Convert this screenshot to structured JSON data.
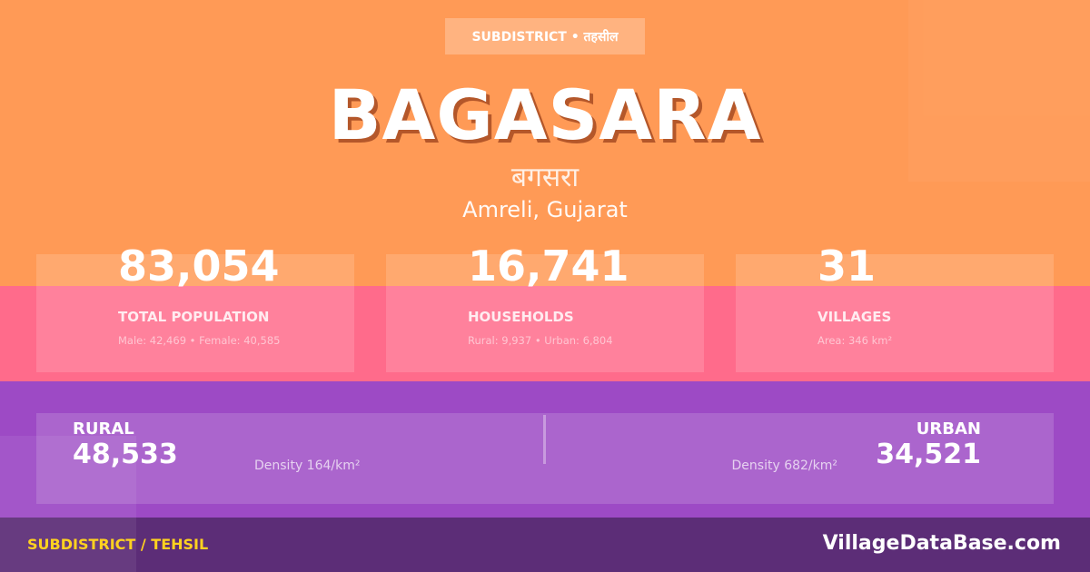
{
  "header": {
    "badge": "SUBDISTRICT • तहसील",
    "title": "BAGASARA",
    "title_hindi": "बगसरा",
    "location": "Amreli, Gujarat"
  },
  "stats": [
    {
      "value": "83,054",
      "label": "TOTAL POPULATION",
      "detail": "Male: 42,469 • Female: 40,585"
    },
    {
      "value": "16,741",
      "label": "HOUSEHOLDS",
      "detail": "Rural: 9,937 • Urban: 6,804"
    },
    {
      "value": "31",
      "label": "VILLAGES",
      "detail": "Area: 346 km²"
    }
  ],
  "rural": {
    "label": "RURAL",
    "value": "48,533",
    "density": "Density 164/km²"
  },
  "urban": {
    "label": "URBAN",
    "value": "34,521",
    "density": "Density 682/km²"
  },
  "footer": {
    "category": "SUBDISTRICT / TEHSIL",
    "site": "VillageDataBase.com"
  },
  "colors": {
    "orange": "#ff9a56",
    "pink": "#ff6b8b",
    "purple": "#9d4ac5",
    "footer": "#5c2d77",
    "accent": "#ffd21f"
  }
}
